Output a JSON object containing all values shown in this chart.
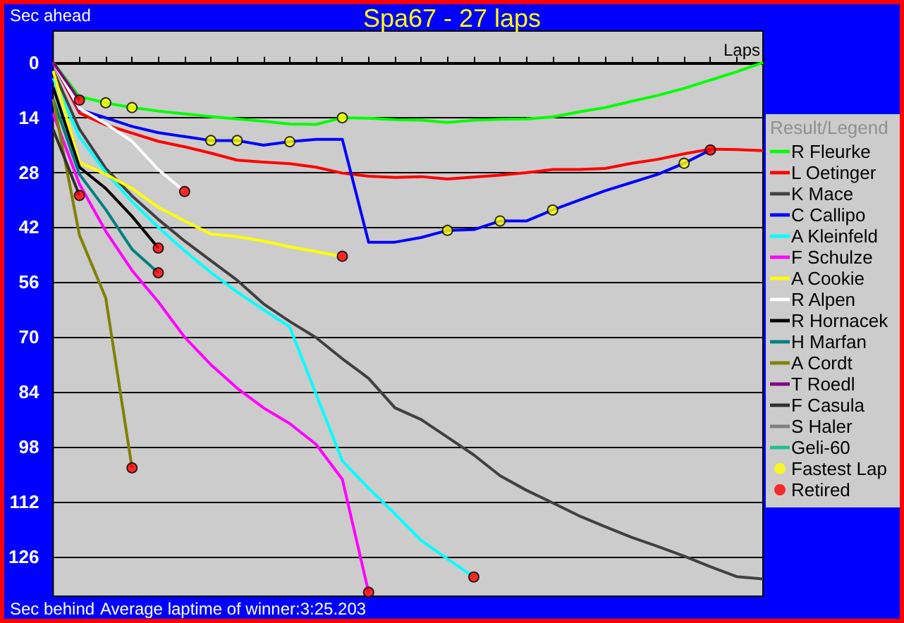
{
  "chart_data": {
    "type": "line",
    "title": "Spa67 - 27 laps",
    "ylabel": "Sec ahead",
    "xlabel": "Laps",
    "legend_title": "Result/Legend",
    "annotations": [
      "Sec behind",
      "Average laptime of winner:3:25.203"
    ],
    "categories": [
      null,
      null,
      null,
      null,
      null,
      null,
      null,
      null,
      null,
      null,
      null,
      null,
      null,
      null,
      null,
      null,
      null,
      null,
      null,
      null,
      null,
      null,
      null,
      null,
      null,
      null,
      null,
      null
    ],
    "ylim": [
      136,
      -8
    ],
    "yticks": [
      0,
      14,
      28,
      42,
      56,
      70,
      84,
      98,
      112,
      126
    ],
    "tick_labels": "y",
    "grid": "y",
    "legend": "right",
    "marker": "none",
    "line_style": "solid",
    "series": [
      {
        "name": "R Fleurke",
        "color": "#00ff00",
        "values": [
          0,
          8.7,
          10.3,
          11.5,
          12.4,
          13.1,
          13.8,
          14.4,
          15,
          15.7,
          15.8,
          14.1,
          14.2,
          14.6,
          14.7,
          15.3,
          14.7,
          14.5,
          14.4,
          13.9,
          12.6,
          11.5,
          9.9,
          8.4,
          6.6,
          4.5,
          2.4,
          0
        ]
      },
      {
        "name": "L Oetinger",
        "color": "#ff0000",
        "values": [
          0,
          12.9,
          15.9,
          18,
          20.1,
          21.5,
          23.1,
          24.9,
          25.4,
          25.8,
          26.7,
          28.2,
          29,
          29.3,
          29.1,
          29.7,
          29.2,
          28.7,
          28.1,
          27.3,
          27.3,
          27,
          25.7,
          24.7,
          23.3,
          22.1,
          22.2,
          22.5
        ]
      },
      {
        "name": "K Mace",
        "color": "#404040",
        "values": [
          2,
          17,
          27,
          34,
          40,
          45.5,
          50.5,
          55.5,
          61.5,
          66,
          70.1,
          75.5,
          80.5,
          88,
          91,
          95.5,
          100,
          105.3,
          109,
          112.2,
          115.5,
          118.3,
          121,
          123.3,
          125.8,
          128.5,
          131,
          131.6
        ]
      },
      {
        "name": "C Callipo",
        "color": "#0000ff",
        "values": [
          0,
          12,
          14.1,
          16.3,
          17.9,
          18.9,
          19.9,
          19.9,
          21.1,
          20.2,
          19.6,
          19.6,
          45.8,
          45.8,
          44.6,
          42.8,
          42.6,
          40.4,
          40.4,
          37.6,
          35.1,
          32.7,
          30.6,
          28.5,
          25.7,
          22.3,
          null,
          null
        ]
      },
      {
        "name": "A Kleinfeld",
        "color": "#00ffff",
        "values": [
          4,
          19,
          28,
          35.5,
          42,
          48,
          53.5,
          58.5,
          63,
          67.4,
          84.5,
          101.5,
          108.5,
          115,
          121.8,
          126.5,
          131.1,
          null,
          null,
          null,
          null,
          null,
          null,
          null,
          null,
          null,
          null,
          null
        ]
      },
      {
        "name": "F Schulze",
        "color": "#ff00ff",
        "values": [
          13,
          31,
          43,
          53,
          61,
          70,
          77,
          83,
          88,
          92,
          97.3,
          106.2,
          135,
          null,
          null,
          null,
          null,
          null,
          null,
          null,
          null,
          null,
          null,
          null,
          null,
          null,
          null,
          null
        ]
      },
      {
        "name": "A Cookie",
        "color": "#ffff00",
        "values": [
          2.2,
          25.5,
          28.5,
          32.1,
          36.9,
          40.4,
          43.7,
          44.4,
          45.5,
          47,
          48.2,
          49.4,
          null,
          null,
          null,
          null,
          null,
          null,
          null,
          null,
          null,
          null,
          null,
          null,
          null,
          null,
          null,
          null
        ]
      },
      {
        "name": "R Alpen",
        "color": "#ffffff",
        "values": [
          0,
          11.7,
          15.6,
          20.1,
          27.3,
          32.9,
          null,
          null,
          null,
          null,
          null,
          null,
          null,
          null,
          null,
          null,
          null,
          null,
          null,
          null,
          null,
          null,
          null,
          null,
          null,
          null,
          null,
          null
        ]
      },
      {
        "name": "R Hornacek",
        "color": "#000000",
        "values": [
          6.3,
          26.7,
          32.1,
          39.2,
          47.3,
          null,
          null,
          null,
          null,
          null,
          null,
          null,
          null,
          null,
          null,
          null,
          null,
          null,
          null,
          null,
          null,
          null,
          null,
          null,
          null,
          null,
          null,
          null
        ]
      },
      {
        "name": "H Marfan",
        "color": "#008080",
        "values": [
          9.3,
          28.5,
          37.5,
          47.6,
          53.6,
          null,
          null,
          null,
          null,
          null,
          null,
          null,
          null,
          null,
          null,
          null,
          null,
          null,
          null,
          null,
          null,
          null,
          null,
          null,
          null,
          null,
          null,
          null
        ]
      },
      {
        "name": "A Cordt",
        "color": "#808000",
        "values": [
          9.3,
          44,
          60,
          103.3,
          null,
          null,
          null,
          null,
          null,
          null,
          null,
          null,
          null,
          null,
          null,
          null,
          null,
          null,
          null,
          null,
          null,
          null,
          null,
          null,
          null,
          null,
          null,
          null
        ]
      },
      {
        "name": "T Roedl",
        "color": "#800080",
        "values": [
          0,
          9.6,
          null,
          null,
          null,
          null,
          null,
          null,
          null,
          null,
          null,
          null,
          null,
          null,
          null,
          null,
          null,
          null,
          null,
          null,
          null,
          null,
          null,
          null,
          null,
          null,
          null,
          null
        ]
      },
      {
        "name": "F Casula",
        "color": "#303030",
        "values": [
          17.1,
          33.9,
          null,
          null,
          null,
          null,
          null,
          null,
          null,
          null,
          null,
          null,
          null,
          null,
          null,
          null,
          null,
          null,
          null,
          null,
          null,
          null,
          null,
          null,
          null,
          null,
          null,
          null
        ]
      },
      {
        "name": "S Haler",
        "color": "#808080",
        "values": [
          null,
          null,
          null,
          null,
          null,
          null,
          null,
          null,
          null,
          null,
          null,
          null,
          null,
          null,
          null,
          null,
          null,
          null,
          null,
          null,
          null,
          null,
          null,
          null,
          null,
          null,
          null,
          null
        ]
      },
      {
        "name": "Geli-60",
        "color": "#20c090",
        "values": [
          null,
          null,
          null,
          null,
          null,
          null,
          null,
          null,
          null,
          null,
          null,
          null,
          null,
          null,
          null,
          null,
          null,
          null,
          null,
          null,
          null,
          null,
          null,
          null,
          null,
          null,
          null,
          null
        ]
      },
      {
        "name": "Fastest Lap",
        "type": "scatter",
        "marker": "circle",
        "color": "#ffff00",
        "values": [
          null,
          null,
          10.3,
          11.5,
          null,
          null,
          19.9,
          19.9,
          null,
          20.2,
          null,
          14.1,
          null,
          null,
          null,
          42.8,
          null,
          40.4,
          null,
          37.6,
          null,
          null,
          null,
          null,
          25.7,
          null,
          null,
          null
        ]
      },
      {
        "name": "Retired",
        "type": "scatter",
        "marker": "circle",
        "color": "#ff0000",
        "values": [
          null,
          9.6,
          null,
          103.3,
          47.3,
          32.9,
          null,
          null,
          null,
          null,
          null,
          49.4,
          135,
          null,
          null,
          null,
          131.1,
          null,
          null,
          null,
          null,
          null,
          null,
          null,
          null,
          22.3,
          null,
          null
        ]
      },
      {
        "type": "scatter",
        "marker": "circle",
        "color": "#ff0000",
        "values": [
          null,
          33.9,
          null,
          null,
          53.6,
          null,
          null,
          null,
          null,
          null,
          null,
          null,
          null,
          null,
          null,
          null,
          null,
          null,
          null,
          null,
          null,
          null,
          null,
          null,
          null,
          null,
          null,
          null
        ]
      }
    ]
  }
}
